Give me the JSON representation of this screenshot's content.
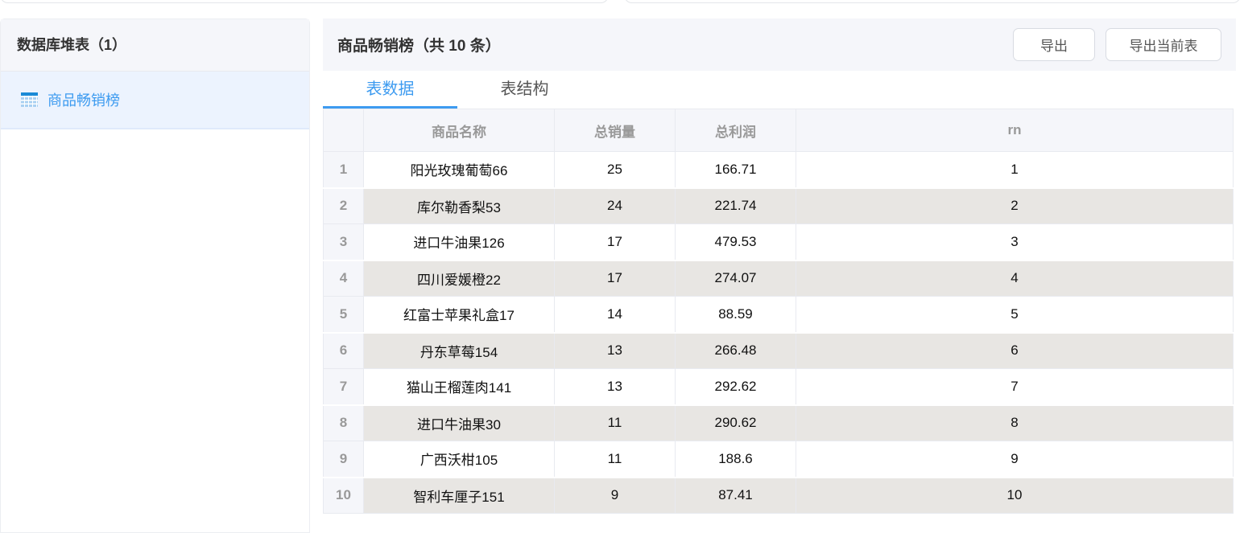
{
  "sidebar": {
    "title": "数据库堆表（1）",
    "items": [
      {
        "label": "商品畅销榜",
        "icon": "table-icon"
      }
    ]
  },
  "main": {
    "title": "商品畅销榜（共 10 条）",
    "buttons": {
      "export": "导出",
      "export_current": "导出当前表"
    },
    "tabs": [
      {
        "label": "表数据",
        "active": true
      },
      {
        "label": "表结构",
        "active": false
      }
    ],
    "accent": "#3d9bf0",
    "table": {
      "columns": [
        "商品名称",
        "总销量",
        "总利润",
        "rn"
      ],
      "rows": [
        [
          "1",
          "阳光玫瑰葡萄66",
          "25",
          "166.71",
          "1"
        ],
        [
          "2",
          "库尔勒香梨53",
          "24",
          "221.74",
          "2"
        ],
        [
          "3",
          "进口牛油果126",
          "17",
          "479.53",
          "3"
        ],
        [
          "4",
          "四川爱媛橙22",
          "17",
          "274.07",
          "4"
        ],
        [
          "5",
          "红富士苹果礼盒17",
          "14",
          "88.59",
          "5"
        ],
        [
          "6",
          "丹东草莓154",
          "13",
          "266.48",
          "6"
        ],
        [
          "7",
          "猫山王榴莲肉141",
          "13",
          "292.62",
          "7"
        ],
        [
          "8",
          "进口牛油果30",
          "11",
          "290.62",
          "8"
        ],
        [
          "9",
          "广西沃柑105",
          "11",
          "188.6",
          "9"
        ],
        [
          "10",
          "智利车厘子151",
          "9",
          "87.41",
          "10"
        ]
      ]
    }
  }
}
